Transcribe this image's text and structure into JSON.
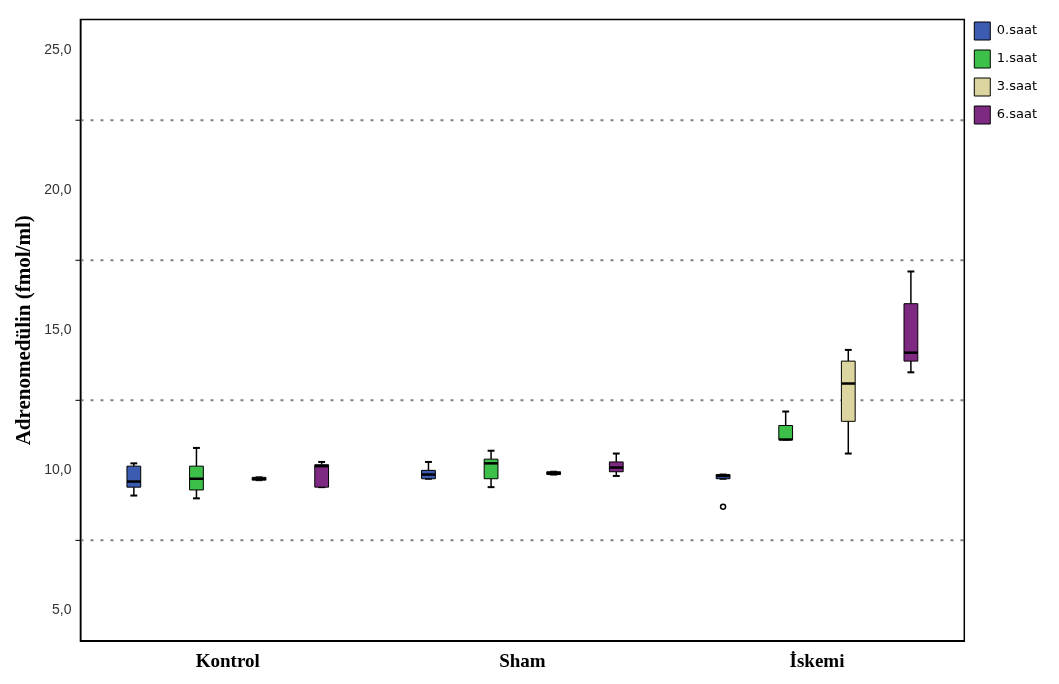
{
  "chart_data": {
    "type": "box",
    "ylabel": "Adrenomedülin (fmol/ml)",
    "categories": [
      "Kontrol",
      "Sham",
      "İskemi"
    ],
    "ylim": [
      3.9,
      26.1
    ],
    "yticks": [
      {
        "value": 5,
        "label": "5,0"
      },
      {
        "value": 10,
        "label": "10,0"
      },
      {
        "value": 15,
        "label": "15,0"
      },
      {
        "value": 20,
        "label": "20,0"
      },
      {
        "value": 25,
        "label": "25,0"
      }
    ],
    "legend": "top right",
    "ref_lines": [
      {
        "axis": "y",
        "value": 7.5,
        "color": "#808080",
        "line_style": "dotted"
      },
      {
        "axis": "y",
        "value": 12.5,
        "color": "#808080",
        "line_style": "dotted"
      },
      {
        "axis": "y",
        "value": 17.5,
        "color": "#808080",
        "line_style": "dotted"
      },
      {
        "axis": "y",
        "value": 22.5,
        "color": "#808080",
        "line_style": "dotted"
      }
    ],
    "series": [
      {
        "name": "0.saat",
        "color": "#3b5cb0",
        "boxes": [
          {
            "low": 9.1,
            "q1": 9.4,
            "median": 9.6,
            "q3": 10.15,
            "high": 10.25
          },
          {
            "low": 9.7,
            "q1": 9.7,
            "median": 9.85,
            "q3": 10.0,
            "high": 10.3
          },
          {
            "low": 9.7,
            "q1": 9.7,
            "median": 9.8,
            "q3": 9.85,
            "high": 9.85,
            "outliers": [
              8.7
            ]
          }
        ]
      },
      {
        "name": "1.saat",
        "color": "#3cc04a",
        "boxes": [
          {
            "low": 9.0,
            "q1": 9.3,
            "median": 9.7,
            "q3": 10.15,
            "high": 10.8
          },
          {
            "low": 9.4,
            "q1": 9.7,
            "median": 10.25,
            "q3": 10.4,
            "high": 10.7
          },
          {
            "low": 11.1,
            "q1": 11.1,
            "median": 11.1,
            "q3": 11.6,
            "high": 12.1
          }
        ]
      },
      {
        "name": "3.saat",
        "color": "#ddd5a0",
        "boxes": [
          {
            "low": 9.65,
            "q1": 9.65,
            "median": 9.7,
            "q3": 9.75,
            "high": 9.75
          },
          {
            "low": 9.85,
            "q1": 9.85,
            "median": 9.9,
            "q3": 9.95,
            "high": 9.95
          },
          {
            "low": 10.6,
            "q1": 11.75,
            "median": 13.1,
            "q3": 13.9,
            "high": 14.3
          }
        ]
      },
      {
        "name": "6.saat",
        "color": "#7f2a82",
        "boxes": [
          {
            "low": 9.4,
            "q1": 9.4,
            "median": 10.15,
            "q3": 10.2,
            "high": 10.3
          },
          {
            "low": 9.8,
            "q1": 9.95,
            "median": 10.1,
            "q3": 10.3,
            "high": 10.6
          },
          {
            "low": 13.5,
            "q1": 13.9,
            "median": 14.2,
            "q3": 15.95,
            "high": 17.1
          }
        ]
      }
    ]
  }
}
